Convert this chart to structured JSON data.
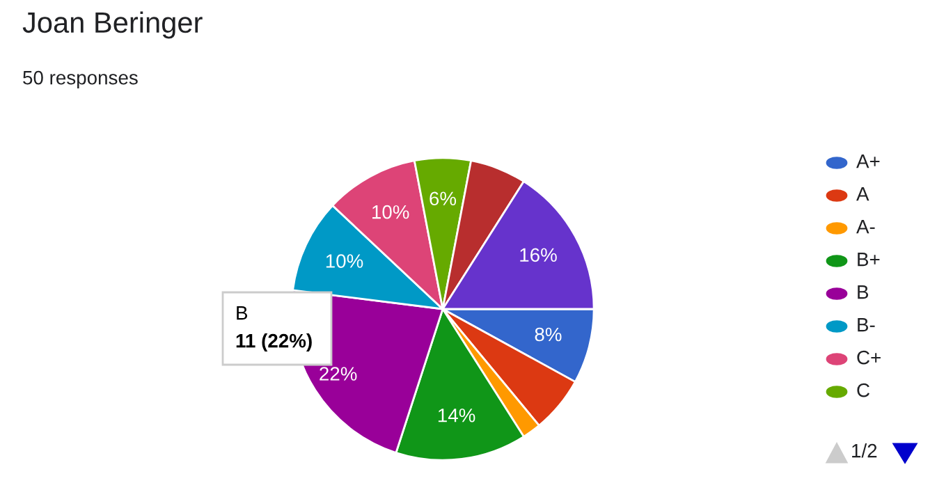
{
  "chart_data": {
    "type": "pie",
    "title": "Joan Beringer",
    "subtitle": "50 responses",
    "categories": [
      "A+",
      "A",
      "A-",
      "B+",
      "B",
      "B-",
      "C+",
      "C",
      null,
      null
    ],
    "values": [
      8,
      6,
      2,
      14,
      22,
      10,
      10,
      6,
      6,
      16
    ],
    "colors": [
      "#3366cc",
      "#dc3912",
      "#ff9900",
      "#109618",
      "#990099",
      "#0099c6",
      "#dd4477",
      "#66aa00",
      "#b82e2e",
      "#6633cc"
    ],
    "value_labels": [
      "8%",
      null,
      null,
      "14%",
      "22%",
      "10%",
      "10%",
      "6%",
      null,
      "16%"
    ],
    "legend": "right",
    "annotations": [
      "B",
      "11 (22%)",
      "1/2"
    ]
  }
}
